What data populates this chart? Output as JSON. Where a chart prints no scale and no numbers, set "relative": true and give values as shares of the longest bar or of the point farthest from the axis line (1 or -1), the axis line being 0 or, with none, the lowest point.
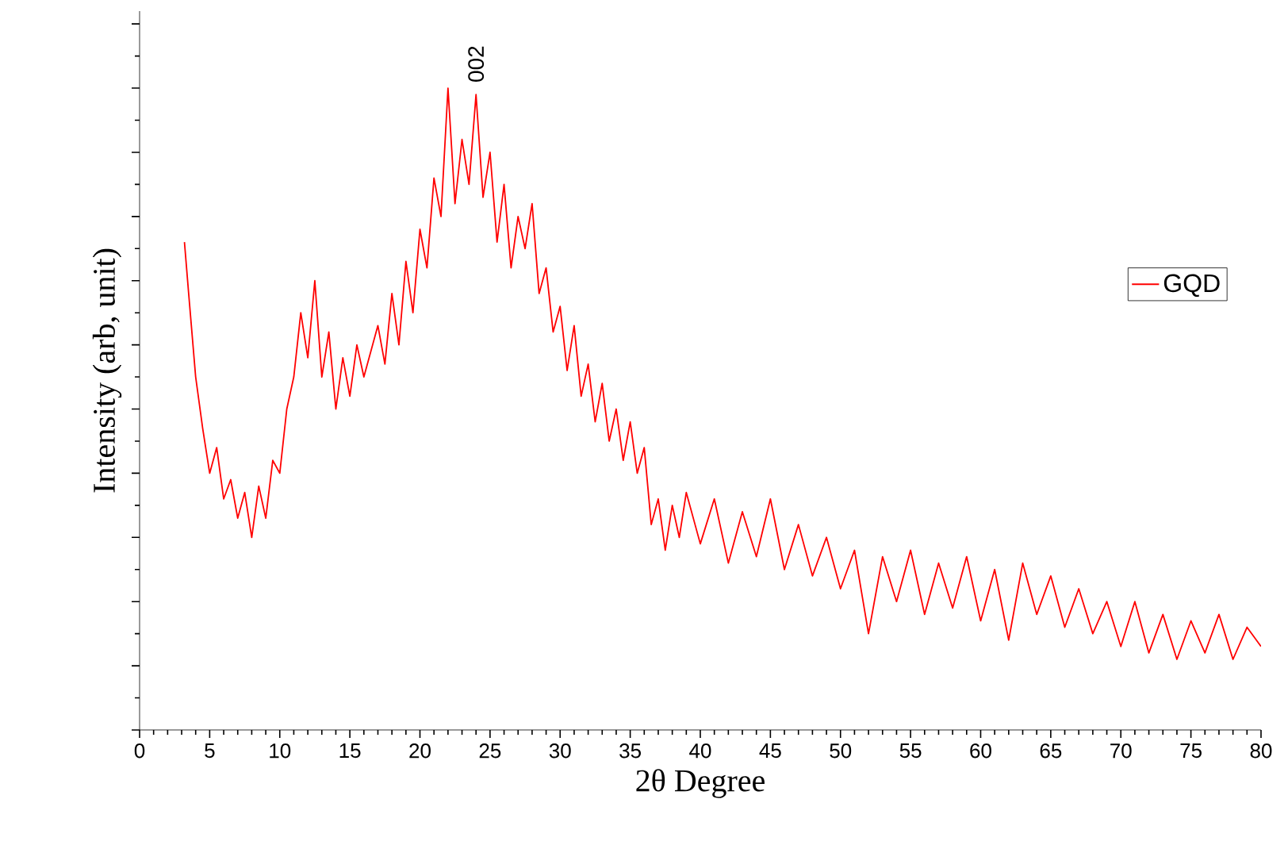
{
  "chart_data": {
    "type": "line",
    "relative": true,
    "xlabel": "2θ Degree",
    "ylabel": "Intensity (arb, unit)",
    "xlim": [
      0,
      80
    ],
    "xticks": [
      0,
      5,
      10,
      15,
      20,
      25,
      30,
      35,
      40,
      45,
      50,
      55,
      60,
      65,
      70,
      75,
      80
    ],
    "tick_labels": "x",
    "legend": "right",
    "grid": false,
    "annotations": [
      {
        "text": "002",
        "x": 24,
        "y": 1.0
      }
    ],
    "series": [
      {
        "name": "GQD",
        "color": "#ff0000",
        "x": [
          3.2,
          3.5,
          4.0,
          4.5,
          5.0,
          5.5,
          6.0,
          6.5,
          7.0,
          7.5,
          8.0,
          8.5,
          9.0,
          9.5,
          10.0,
          10.5,
          11.0,
          11.5,
          12.0,
          12.5,
          13.0,
          13.5,
          14.0,
          14.5,
          15.0,
          15.5,
          16.0,
          17.0,
          17.5,
          18.0,
          18.5,
          19.0,
          19.5,
          20.0,
          20.5,
          21.0,
          21.5,
          22.0,
          22.5,
          23.0,
          23.5,
          24.0,
          24.5,
          25.0,
          25.5,
          26.0,
          26.5,
          27.0,
          27.5,
          28.0,
          28.5,
          29.0,
          29.5,
          30.0,
          30.5,
          31.0,
          31.5,
          32.0,
          32.5,
          33.0,
          33.5,
          34.0,
          34.5,
          35.0,
          35.5,
          36.0,
          36.5,
          37.0,
          37.5,
          38.0,
          38.5,
          39.0,
          40.0,
          41.0,
          42.0,
          43.0,
          44.0,
          45.0,
          46.0,
          47.0,
          48.0,
          49.0,
          50.0,
          51.0,
          52.0,
          53.0,
          54.0,
          55.0,
          56.0,
          57.0,
          58.0,
          59.0,
          60.0,
          61.0,
          62.0,
          63.0,
          64.0,
          65.0,
          66.0,
          67.0,
          68.0,
          69.0,
          70.0,
          71.0,
          72.0,
          73.0,
          74.0,
          75.0,
          76.0,
          77.0,
          78.0,
          79.0,
          80.0
        ],
        "values": [
          0.76,
          0.68,
          0.55,
          0.47,
          0.4,
          0.44,
          0.36,
          0.39,
          0.33,
          0.37,
          0.3,
          0.38,
          0.33,
          0.42,
          0.4,
          0.5,
          0.55,
          0.65,
          0.58,
          0.7,
          0.55,
          0.62,
          0.5,
          0.58,
          0.52,
          0.6,
          0.55,
          0.63,
          0.57,
          0.68,
          0.6,
          0.73,
          0.65,
          0.78,
          0.72,
          0.86,
          0.8,
          1.0,
          0.82,
          0.92,
          0.85,
          0.99,
          0.83,
          0.9,
          0.76,
          0.85,
          0.72,
          0.8,
          0.75,
          0.82,
          0.68,
          0.72,
          0.62,
          0.66,
          0.56,
          0.63,
          0.52,
          0.57,
          0.48,
          0.54,
          0.45,
          0.5,
          0.42,
          0.48,
          0.4,
          0.44,
          0.32,
          0.36,
          0.28,
          0.35,
          0.3,
          0.37,
          0.29,
          0.36,
          0.26,
          0.34,
          0.27,
          0.36,
          0.25,
          0.32,
          0.24,
          0.3,
          0.22,
          0.28,
          0.15,
          0.27,
          0.2,
          0.28,
          0.18,
          0.26,
          0.19,
          0.27,
          0.17,
          0.25,
          0.14,
          0.26,
          0.18,
          0.24,
          0.16,
          0.22,
          0.15,
          0.2,
          0.13,
          0.2,
          0.12,
          0.18,
          0.11,
          0.17,
          0.12,
          0.18,
          0.11,
          0.16,
          0.13
        ]
      }
    ]
  }
}
